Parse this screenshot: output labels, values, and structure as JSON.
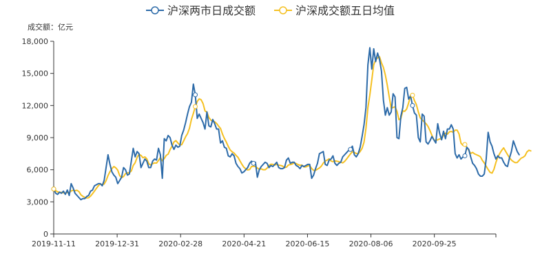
{
  "chart_data": {
    "type": "line",
    "unit_label": "成交额：亿元",
    "x_tick_labels": [
      "2019-11-11",
      "2019-12-31",
      "2020-02-28",
      "2020-04-21",
      "2020-06-15",
      "2020-08-06",
      "2020-09-25"
    ],
    "y_ticks": [
      0,
      3000,
      6000,
      9000,
      12000,
      15000,
      18000
    ],
    "y_tick_labels": [
      "0",
      "3,000",
      "6,000",
      "9,000",
      "12,000",
      "15,000",
      "18,000"
    ],
    "ylim": [
      0,
      18000
    ],
    "x_index_range": [
      0,
      228
    ],
    "colors": {
      "daily": "#2c6aa8",
      "ma5": "#f5c020",
      "axis": "#333333"
    },
    "series": [
      {
        "name": "沪深两市日成交额",
        "values": [
          4200,
          3800,
          3700,
          3900,
          3800,
          4000,
          3700,
          4100,
          3600,
          4700,
          4300,
          3800,
          3600,
          3400,
          3200,
          3300,
          3300,
          3500,
          3600,
          4000,
          4100,
          4500,
          4600,
          4700,
          4700,
          4500,
          5000,
          6200,
          7400,
          6500,
          5800,
          5500,
          5300,
          4700,
          5000,
          5300,
          6200,
          6000,
          5500,
          5600,
          6800,
          8000,
          7200,
          7700,
          7500,
          6200,
          6600,
          7000,
          6800,
          6200,
          6200,
          6800,
          7000,
          6900,
          8000,
          7400,
          5200,
          8900,
          8700,
          9200,
          9000,
          8300,
          7900,
          8300,
          8100,
          8200,
          9200,
          9700,
          10400,
          11200,
          11900,
          12300,
          14000,
          13000,
          10800,
          11200,
          10800,
          10400,
          9800,
          11400,
          10100,
          10000,
          10700,
          10300,
          9800,
          9800,
          8500,
          8700,
          8100,
          8000,
          7300,
          7200,
          7500,
          7300,
          6600,
          6300,
          6100,
          5700,
          5800,
          6000,
          6200,
          6600,
          6800,
          6600,
          6700,
          5300,
          6000,
          6300,
          6500,
          6700,
          6600,
          6200,
          6400,
          6300,
          6500,
          6700,
          6200,
          6100,
          6100,
          6200,
          6900,
          7100,
          6600,
          6700,
          6700,
          6400,
          6300,
          6100,
          6400,
          6300,
          6400,
          6500,
          6500,
          5200,
          5500,
          6100,
          6600,
          7500,
          7600,
          7700,
          6500,
          6400,
          6900,
          7000,
          7300,
          6600,
          6400,
          6600,
          6700,
          7200,
          7400,
          7600,
          7800,
          7900,
          8200,
          7400,
          7200,
          7500,
          8100,
          9100,
          10200,
          11800,
          15800,
          17400,
          15400,
          17300,
          16100,
          16900,
          16300,
          15200,
          12500,
          11100,
          11800,
          11100,
          11400,
          13100,
          12800,
          9000,
          8900,
          11000,
          11800,
          13600,
          13700,
          12600,
          12900,
          12000,
          11300,
          11100,
          9000,
          8600,
          11200,
          11000,
          8600,
          8400,
          8700,
          9100,
          8800,
          8500,
          10300,
          9400,
          8800,
          9600,
          8900,
          9800,
          9800,
          10200,
          9800,
          7500,
          7100,
          7400,
          7000,
          7200,
          7300,
          8100,
          7900,
          7200,
          6600,
          6400,
          6100,
          5600,
          5400,
          5400,
          5600,
          7000,
          9500,
          8600,
          8200,
          7500,
          7000,
          7300,
          7100,
          7100,
          6700,
          6400,
          6300,
          7100,
          7700,
          8700,
          8200,
          7700,
          7400
        ]
      },
      {
        "name": "沪深成交额五日均值",
        "values": [
          4200,
          4050,
          3930,
          3900,
          3880,
          3840,
          3820,
          3880,
          3840,
          4020,
          4080,
          4040,
          4080,
          3960,
          3660,
          3520,
          3420,
          3360,
          3380,
          3540,
          3760,
          4000,
          4260,
          4500,
          4680,
          4600,
          4660,
          4980,
          5460,
          5820,
          6100,
          6300,
          6180,
          5960,
          5460,
          5260,
          5360,
          5640,
          5700,
          5720,
          5880,
          6400,
          6660,
          7160,
          7440,
          7340,
          7120,
          7200,
          7020,
          6560,
          6440,
          6560,
          6640,
          6620,
          6860,
          7140,
          6840,
          7040,
          7340,
          7460,
          7880,
          8200,
          8600,
          8720,
          8500,
          8320,
          8340,
          8700,
          9080,
          9380,
          9880,
          10700,
          11260,
          11900,
          12380,
          12620,
          12540,
          12180,
          11500,
          11380,
          10880,
          10640,
          10540,
          10480,
          10320,
          10080,
          9860,
          9340,
          8920,
          8580,
          8180,
          7840,
          7680,
          7560,
          7340,
          7160,
          6840,
          6520,
          6240,
          6080,
          5980,
          6020,
          6300,
          6320,
          6300,
          6160,
          6040,
          6080,
          6000,
          6000,
          6140,
          6400,
          6520,
          6500,
          6440,
          6500,
          6430,
          6400,
          6340,
          6200,
          6240,
          6440,
          6480,
          6540,
          6640,
          6580,
          6480,
          6420,
          6440,
          6260,
          6260,
          6360,
          6380,
          6120,
          5940,
          5940,
          6060,
          6160,
          6340,
          6620,
          6820,
          6900,
          7020,
          6820,
          6750,
          6830,
          6800,
          6750,
          6710,
          6640,
          6780,
          7000,
          7240,
          7480,
          7680,
          7620,
          7520,
          7500,
          7700,
          8000,
          8580,
          9860,
          11800,
          12980,
          14380,
          15800,
          16260,
          16460,
          16560,
          15980,
          15560,
          14840,
          13900,
          12800,
          11740,
          11820,
          11880,
          11460,
          10680,
          10780,
          11500,
          11460,
          11680,
          12240,
          12960,
          12960,
          12460,
          12080,
          11400,
          10840,
          10660,
          10480,
          10300,
          10040,
          9660,
          9220,
          8800,
          8720,
          8800,
          8880,
          8880,
          9220,
          9420,
          9320,
          9540,
          9580,
          9500,
          9700,
          9700,
          9340,
          8480,
          8280,
          8360,
          8100,
          7820,
          7520,
          7620,
          7480,
          7400,
          7320,
          7220,
          6880,
          6640,
          6320,
          6020,
          5760,
          5680,
          6040,
          6680,
          7180,
          7520,
          7820,
          8040,
          7720,
          7420,
          7120,
          6900,
          6760,
          6660,
          6680,
          6880,
          7080,
          7160,
          7300,
          7660,
          7820,
          7760
        ]
      }
    ],
    "hollow_markers": [
      {
        "series": 0,
        "index": 0
      },
      {
        "series": 1,
        "index": 0
      },
      {
        "series": 0,
        "index": 73
      },
      {
        "series": 1,
        "index": 73
      },
      {
        "series": 0,
        "index": 103
      },
      {
        "series": 0,
        "index": 153
      },
      {
        "series": 0,
        "index": 185
      },
      {
        "series": 1,
        "index": 185
      },
      {
        "series": 0,
        "index": 212
      },
      {
        "series": 1,
        "index": 212
      }
    ]
  }
}
